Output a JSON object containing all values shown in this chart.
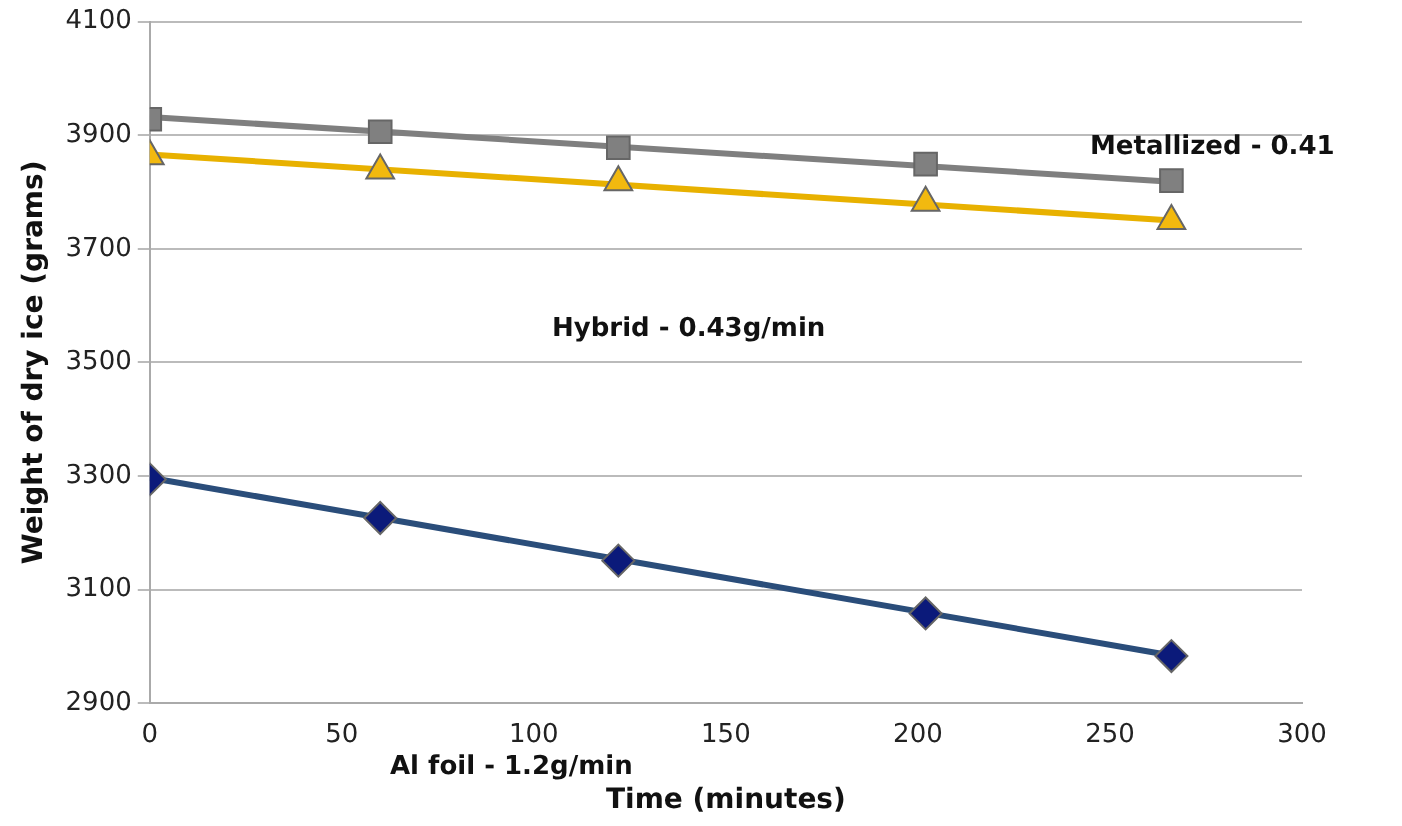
{
  "chart_data": {
    "type": "scatter",
    "xlabel": "Time (minutes)",
    "ylabel": "Weight of dry ice (grams)",
    "xlim": [
      0,
      300
    ],
    "xticks": [
      0,
      50,
      100,
      150,
      200,
      250,
      300
    ],
    "ylim": [
      2900,
      4100
    ],
    "yticks": [
      2900,
      3100,
      3300,
      3500,
      3700,
      3900,
      4100
    ],
    "grid": "y",
    "legend": false,
    "series": [
      {
        "type": "line",
        "color": "#7f7f7f",
        "marker": "none",
        "x": [
          0,
          266
        ],
        "values": [
          3932,
          3818
        ]
      },
      {
        "type": "line",
        "color": "#e8b100",
        "marker": "none",
        "x": [
          0,
          266
        ],
        "values": [
          3866,
          3750
        ]
      },
      {
        "type": "line",
        "color": "#2a4d7a",
        "marker": "none",
        "x": [
          0,
          266
        ],
        "values": [
          3297,
          2984
        ]
      },
      {
        "color": "#808080",
        "marker": "square",
        "x": [
          0,
          60,
          122,
          202,
          266
        ],
        "values": [
          3928,
          3906,
          3878,
          3849,
          3820
        ]
      },
      {
        "color": "#f2b90f",
        "marker": "triangle",
        "x": [
          0,
          60,
          122,
          202,
          266
        ],
        "values": [
          3863,
          3838,
          3817,
          3781,
          3749
        ]
      },
      {
        "color": "#0b1a7a",
        "marker": "diamond",
        "x": [
          0,
          60,
          122,
          202,
          266
        ],
        "values": [
          3294,
          3226,
          3151,
          3058,
          2983
        ]
      }
    ],
    "annotations": [
      "Metallized - 0.41",
      "Hybrid - 0.43g/min",
      "Al foil - 1.2g/min"
    ]
  }
}
